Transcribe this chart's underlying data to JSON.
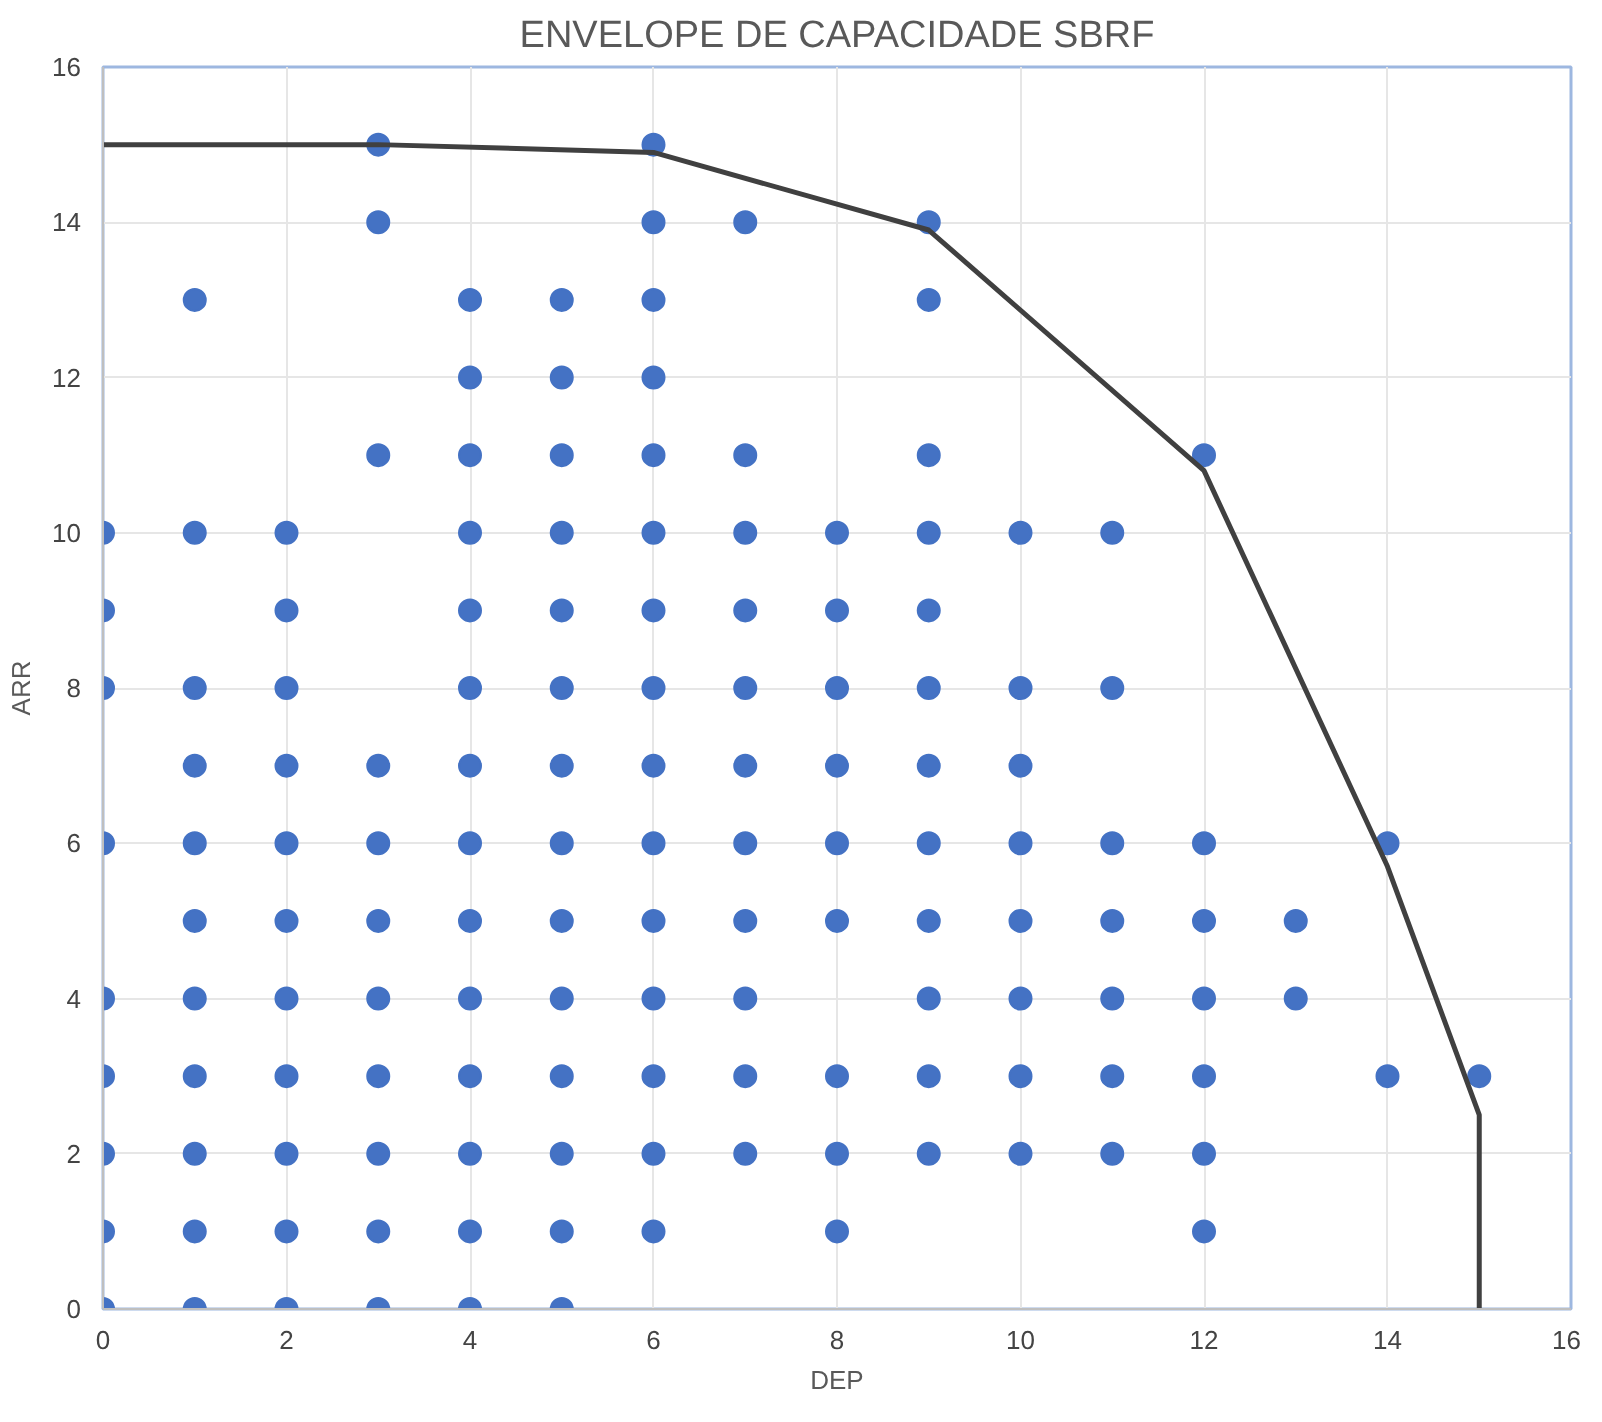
{
  "chart_data": {
    "type": "scatter",
    "title": "ENVELOPE DE CAPACIDADE SBRF",
    "xlabel": "DEP",
    "ylabel": "ARR",
    "xlim": [
      0,
      16
    ],
    "ylim": [
      0,
      16
    ],
    "xticks": [
      0,
      2,
      4,
      6,
      8,
      10,
      12,
      14,
      16
    ],
    "yticks": [
      0,
      2,
      4,
      6,
      8,
      10,
      12,
      14,
      16
    ],
    "grid": true,
    "series": [
      {
        "marker": "circle",
        "color": "#4472c4",
        "x": [
          0,
          0,
          0,
          0,
          0,
          0,
          0,
          0,
          0,
          1,
          1,
          1,
          1,
          1,
          1,
          1,
          1,
          1,
          1,
          1,
          2,
          2,
          2,
          2,
          2,
          2,
          2,
          2,
          2,
          2,
          2,
          3,
          3,
          3,
          3,
          3,
          3,
          3,
          3,
          3,
          3,
          3,
          4,
          4,
          4,
          4,
          4,
          4,
          4,
          4,
          4,
          4,
          4,
          4,
          4,
          4,
          5,
          5,
          5,
          5,
          5,
          5,
          5,
          5,
          5,
          5,
          5,
          5,
          5,
          5,
          6,
          6,
          6,
          6,
          6,
          6,
          6,
          6,
          6,
          6,
          6,
          6,
          6,
          6,
          6,
          7,
          7,
          7,
          7,
          7,
          7,
          7,
          7,
          7,
          7,
          7,
          8,
          8,
          8,
          8,
          8,
          8,
          8,
          8,
          8,
          9,
          9,
          9,
          9,
          9,
          9,
          9,
          9,
          9,
          9,
          9,
          9,
          10,
          10,
          10,
          10,
          10,
          10,
          10,
          10,
          11,
          11,
          11,
          11,
          11,
          11,
          11,
          12,
          12,
          12,
          12,
          12,
          12,
          12,
          13,
          13,
          14,
          14,
          15
        ],
        "values": [
          10,
          9,
          8,
          6,
          4,
          3,
          2,
          1,
          0,
          13,
          10,
          8,
          7,
          6,
          5,
          4,
          3,
          2,
          1,
          0,
          10,
          9,
          8,
          7,
          6,
          5,
          4,
          3,
          2,
          1,
          0,
          15,
          14,
          11,
          7,
          6,
          5,
          4,
          3,
          2,
          1,
          0,
          13,
          12,
          11,
          10,
          9,
          8,
          7,
          6,
          5,
          4,
          3,
          2,
          1,
          0,
          13,
          12,
          11,
          10,
          9,
          8,
          7,
          6,
          5,
          4,
          3,
          2,
          1,
          0,
          15,
          14,
          13,
          12,
          11,
          10,
          9,
          8,
          7,
          6,
          5,
          4,
          3,
          2,
          1,
          14,
          11,
          10,
          9,
          8,
          7,
          6,
          5,
          4,
          3,
          2,
          10,
          9,
          8,
          7,
          6,
          5,
          3,
          2,
          1,
          14,
          13,
          11,
          10,
          9,
          8,
          7,
          6,
          5,
          4,
          3,
          2,
          10,
          8,
          7,
          6,
          5,
          4,
          3,
          2,
          10,
          8,
          6,
          5,
          4,
          3,
          2,
          11,
          6,
          5,
          4,
          3,
          2,
          1,
          5,
          4,
          6,
          3,
          3
        ]
      },
      {
        "type": "line",
        "marker": "none",
        "color": "#404040",
        "x": [
          0,
          3,
          6,
          9,
          12,
          14,
          15,
          15
        ],
        "values": [
          15,
          15,
          14.9,
          13.9,
          10.8,
          5.7,
          2.5,
          0
        ]
      }
    ]
  }
}
